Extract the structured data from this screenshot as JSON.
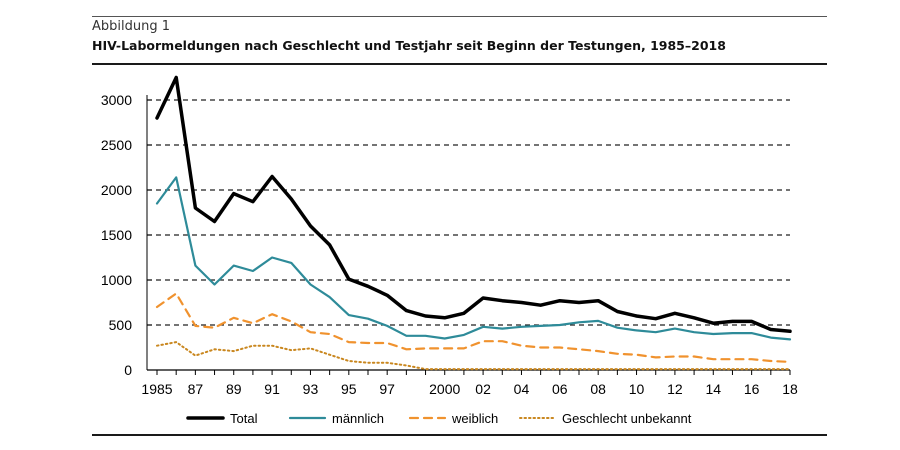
{
  "caption": {
    "label": "Abbildung 1",
    "title": "HIV-Labormeldungen nach Geschlecht und Testjahr seit Beginn der Testungen, 1985–2018"
  },
  "chart_data": {
    "type": "line",
    "x": [
      1985,
      1986,
      1987,
      1988,
      1989,
      1990,
      1991,
      1992,
      1993,
      1994,
      1995,
      1996,
      1997,
      1998,
      1999,
      2000,
      2001,
      2002,
      2003,
      2004,
      2005,
      2006,
      2007,
      2008,
      2009,
      2010,
      2011,
      2012,
      2013,
      2014,
      2015,
      2016,
      2017,
      2018
    ],
    "x_tick_values": [
      1985,
      1987,
      1989,
      1991,
      1993,
      1995,
      1997,
      2000,
      2002,
      2004,
      2006,
      2008,
      2010,
      2012,
      2014,
      2016,
      2018
    ],
    "x_tick_labels": [
      "1985",
      "87",
      "89",
      "91",
      "93",
      "95",
      "97",
      "2000",
      "02",
      "04",
      "06",
      "08",
      "10",
      "12",
      "14",
      "16",
      "18"
    ],
    "ylim": [
      0,
      3000
    ],
    "y_ticks": [
      0,
      500,
      1000,
      1500,
      2000,
      2500,
      3000
    ],
    "grid": "horizontal dashed",
    "legend_position": "bottom",
    "series": [
      {
        "name": "Total",
        "color": "#000000",
        "style": "solid",
        "values": [
          2800,
          3250,
          1800,
          1650,
          1960,
          1870,
          2150,
          1900,
          1600,
          1390,
          1010,
          930,
          830,
          660,
          600,
          580,
          630,
          800,
          770,
          750,
          720,
          770,
          750,
          770,
          650,
          600,
          570,
          630,
          580,
          520,
          540,
          540,
          450,
          430
        ]
      },
      {
        "name": "männlich",
        "color": "#2e8b99",
        "style": "solid",
        "values": [
          1850,
          2140,
          1160,
          950,
          1160,
          1100,
          1250,
          1190,
          950,
          810,
          610,
          570,
          490,
          380,
          380,
          350,
          390,
          480,
          460,
          480,
          490,
          500,
          530,
          545,
          470,
          440,
          420,
          460,
          420,
          400,
          410,
          410,
          360,
          340
        ]
      },
      {
        "name": "weiblich",
        "color": "#f0922e",
        "style": "dashed",
        "values": [
          700,
          850,
          490,
          470,
          580,
          520,
          620,
          540,
          420,
          400,
          310,
          300,
          300,
          230,
          240,
          240,
          240,
          320,
          320,
          270,
          250,
          250,
          230,
          210,
          180,
          170,
          140,
          150,
          150,
          120,
          120,
          120,
          100,
          90
        ]
      },
      {
        "name": "Geschlecht unbekannt",
        "color": "#c9871f",
        "style": "dotted",
        "values": [
          270,
          310,
          160,
          230,
          210,
          270,
          270,
          220,
          240,
          170,
          100,
          80,
          80,
          50,
          10,
          10,
          10,
          10,
          10,
          10,
          10,
          10,
          10,
          10,
          10,
          10,
          10,
          10,
          10,
          10,
          10,
          10,
          10,
          10
        ]
      }
    ]
  }
}
